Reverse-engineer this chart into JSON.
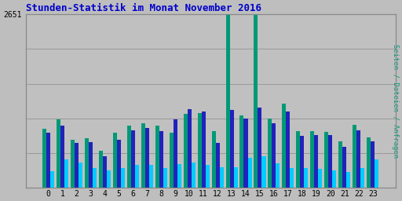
{
  "title": "Stunden-Statistik im Monat November 2016",
  "ylabel": "Seiten / Dateien / Anfragen",
  "xlabel_ticks": [
    0,
    1,
    2,
    3,
    4,
    5,
    6,
    7,
    8,
    9,
    10,
    11,
    12,
    13,
    14,
    15,
    16,
    17,
    18,
    19,
    20,
    21,
    22,
    23
  ],
  "background_color": "#bebebe",
  "plot_bg_color": "#c0c0c0",
  "title_color": "#0000cc",
  "ylabel_color": "#009977",
  "grid_color": "#999999",
  "bar_width": 0.28,
  "series_green": [
    900,
    1050,
    730,
    760,
    560,
    840,
    950,
    980,
    950,
    840,
    1130,
    1140,
    870,
    2651,
    1110,
    2651,
    1060,
    1290,
    860,
    860,
    850,
    710,
    960,
    770
  ],
  "series_blue": [
    840,
    950,
    680,
    700,
    480,
    730,
    880,
    910,
    870,
    1050,
    1200,
    1160,
    680,
    1190,
    1060,
    1230,
    990,
    1160,
    790,
    800,
    810,
    620,
    880,
    710
  ],
  "series_cyan": [
    250,
    430,
    390,
    305,
    265,
    295,
    350,
    345,
    305,
    360,
    390,
    345,
    310,
    310,
    460,
    480,
    375,
    295,
    300,
    285,
    265,
    245,
    295,
    430
  ],
  "color_green": "#009977",
  "color_blue": "#2222bb",
  "color_cyan": "#00ccff",
  "ylim": [
    0,
    2651
  ],
  "ytick_val": 2651,
  "gridline_count": 5
}
